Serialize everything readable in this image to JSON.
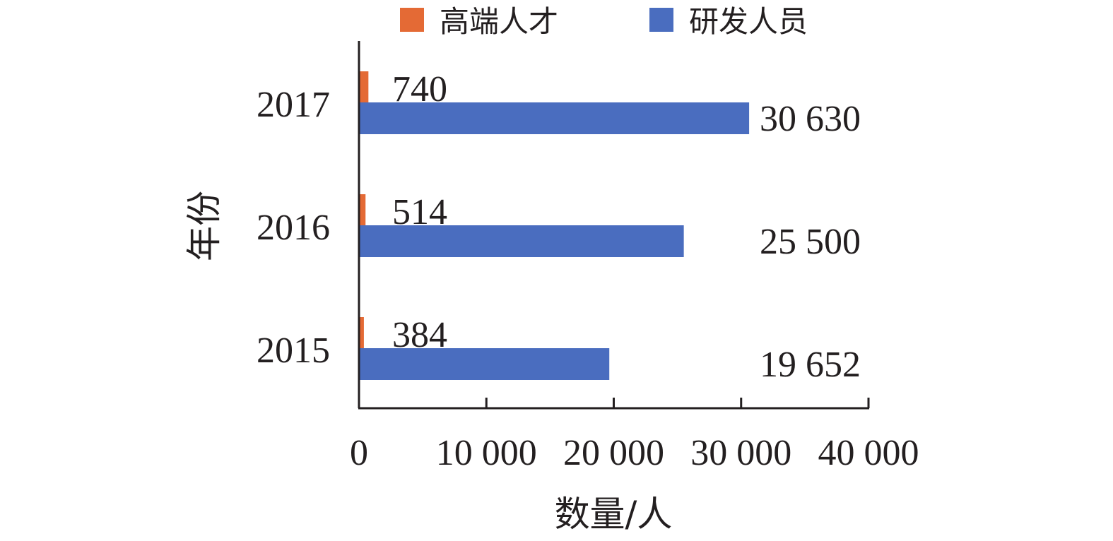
{
  "chart_data": {
    "type": "bar",
    "orientation": "horizontal",
    "categories": [
      "2017",
      "2016",
      "2015"
    ],
    "series": [
      {
        "name": "高端人才",
        "values": [
          740,
          514,
          384
        ],
        "labels": [
          "740",
          "514",
          "384"
        ],
        "color": "#e46a35"
      },
      {
        "name": "研发人员",
        "values": [
          30630,
          25500,
          19652
        ],
        "labels": [
          "30 630",
          "25 500",
          "19 652"
        ],
        "color": "#4a6dbf"
      }
    ],
    "xlabel": "数量/人",
    "ylabel": "年份",
    "xlim": [
      0,
      40000
    ],
    "xticks": [
      0,
      10000,
      20000,
      30000,
      40000
    ],
    "xtick_labels": [
      "0",
      "10 000",
      "20 000",
      "30 000",
      "40 000"
    ],
    "legend_position": "top",
    "grid": false,
    "axis_color": "#231f20"
  }
}
